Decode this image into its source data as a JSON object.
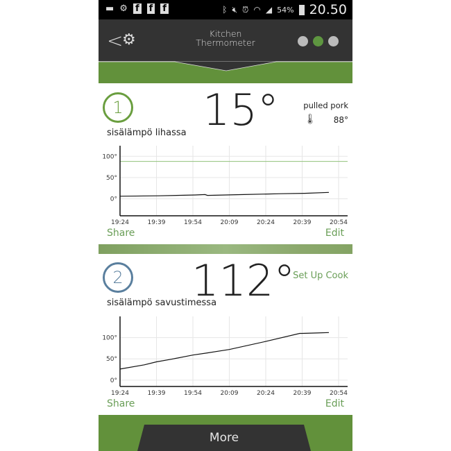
{
  "status_bar": {
    "battery": "54%",
    "time": "20.50",
    "icons": [
      "message-icon",
      "settings-icon",
      "facebook-icon",
      "facebook-icon",
      "facebook-icon",
      "bluetooth-icon",
      "mute-icon",
      "alarm-icon",
      "wifi-icon",
      "signal-icon",
      "battery-icon"
    ]
  },
  "header": {
    "title_line1": "Kitchen",
    "title_line2": "Thermometer",
    "pages": 3,
    "active_page": 2
  },
  "colors": {
    "accent": "#62913b",
    "header": "#333333",
    "probe1": "#6a9e3f",
    "probe2": "#5a7f9e",
    "link": "#6a9e57"
  },
  "probes": [
    {
      "number": "1",
      "name": "sisälämpö lihassa",
      "temperature": "15°",
      "cook_name": "pulled pork",
      "target": "88°",
      "share": "Share",
      "edit": "Edit"
    },
    {
      "number": "2",
      "name": "sisälämpö savustimessa",
      "temperature": "112°",
      "setup_cook": "Set Up Cook",
      "share": "Share",
      "edit": "Edit"
    }
  ],
  "more_label": "More",
  "chart_data": [
    {
      "type": "line",
      "x_ticks": [
        "19:24",
        "19:39",
        "19:54",
        "20:09",
        "20:24",
        "20:39",
        "20:54"
      ],
      "y_ticks": [
        "100°",
        "50°",
        "0°"
      ],
      "ylim": [
        -40,
        125
      ],
      "grid": true,
      "target_line": 88,
      "series": [
        {
          "x": [
            "19:24",
            "19:40",
            "19:55",
            "19:59",
            "20:00",
            "20:15",
            "20:30",
            "20:40",
            "20:50"
          ],
          "y": [
            6,
            7,
            9,
            10,
            8,
            10,
            12,
            13,
            15
          ]
        }
      ]
    },
    {
      "type": "line",
      "x_ticks": [
        "19:24",
        "19:39",
        "19:54",
        "20:09",
        "20:24",
        "20:39",
        "20:54"
      ],
      "y_ticks": [
        "100°",
        "50°",
        "0°"
      ],
      "ylim": [
        -15,
        150
      ],
      "grid": true,
      "series": [
        {
          "x": [
            "19:24",
            "19:34",
            "19:39",
            "19:45",
            "19:54",
            "20:00",
            "20:09",
            "20:24",
            "20:38",
            "20:39",
            "20:45",
            "20:50"
          ],
          "y": [
            26,
            36,
            43,
            49,
            59,
            64,
            72,
            91,
            110,
            110,
            111,
            112
          ]
        }
      ]
    }
  ]
}
